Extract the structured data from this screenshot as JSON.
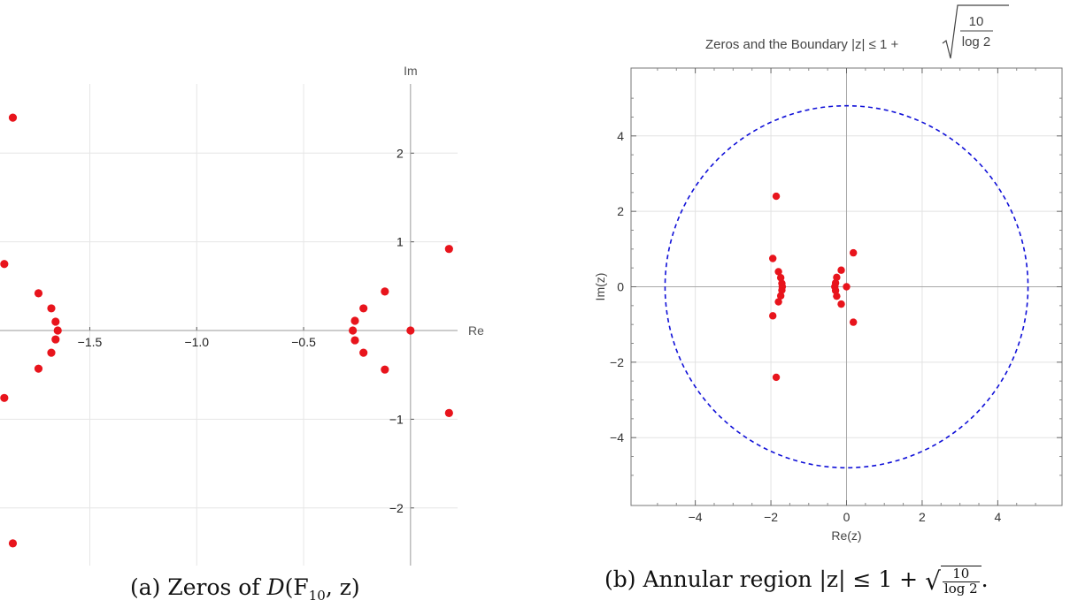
{
  "chart_data": [
    {
      "type": "scatter",
      "title": "",
      "xlabel": "Re",
      "ylabel": "Im",
      "xlim": [
        -1.92,
        0.22
      ],
      "ylim": [
        -2.65,
        2.78
      ],
      "x_ticks": [
        -1.5,
        -1.0,
        -0.5
      ],
      "x_tick_labels": [
        "−1.5",
        "−1.0",
        "−0.5"
      ],
      "y_ticks": [
        -2,
        -1,
        1,
        2
      ],
      "y_tick_labels": [
        "−2",
        "−1",
        "1",
        "2"
      ],
      "grid": true,
      "marker_color": "#e8141c",
      "points": [
        {
          "x": -1.86,
          "y": 2.4
        },
        {
          "x": -1.86,
          "y": -2.4
        },
        {
          "x": -1.9,
          "y": 0.75
        },
        {
          "x": -1.9,
          "y": -0.76
        },
        {
          "x": -1.74,
          "y": 0.42
        },
        {
          "x": -1.74,
          "y": -0.43
        },
        {
          "x": -1.68,
          "y": 0.25
        },
        {
          "x": -1.68,
          "y": -0.25
        },
        {
          "x": -1.66,
          "y": 0.1
        },
        {
          "x": -1.66,
          "y": -0.1
        },
        {
          "x": -1.65,
          "y": 0.0
        },
        {
          "x": -0.26,
          "y": 0.11
        },
        {
          "x": -0.26,
          "y": -0.11
        },
        {
          "x": -0.27,
          "y": 0.0
        },
        {
          "x": -0.22,
          "y": 0.25
        },
        {
          "x": -0.22,
          "y": -0.25
        },
        {
          "x": -0.12,
          "y": 0.44
        },
        {
          "x": -0.12,
          "y": -0.44
        },
        {
          "x": 0.0,
          "y": 0.0
        },
        {
          "x": 0.18,
          "y": 0.92
        },
        {
          "x": 0.18,
          "y": -0.93
        }
      ]
    },
    {
      "type": "scatter",
      "title": "Zeros and the Boundary |z| ≤ 1 + ",
      "title_sqrt_num": "10",
      "title_sqrt_den": "log 2",
      "xlabel": "Re(z)",
      "ylabel": "Im(z)",
      "xlim": [
        -5.7,
        5.7
      ],
      "ylim": [
        -5.8,
        5.8
      ],
      "x_ticks": [
        -4,
        -2,
        0,
        2,
        4
      ],
      "x_tick_labels": [
        "−4",
        "−2",
        "0",
        "2",
        "4"
      ],
      "y_ticks": [
        -4,
        -2,
        0,
        2,
        4
      ],
      "y_tick_labels": [
        "−4",
        "−2",
        "0",
        "2",
        "4"
      ],
      "grid": true,
      "marker_color": "#e8141c",
      "boundary_circle": {
        "radius": 4.8,
        "color": "#1010d8",
        "style": "dashed"
      },
      "points": [
        {
          "x": -1.86,
          "y": 2.4
        },
        {
          "x": -1.86,
          "y": -2.4
        },
        {
          "x": -1.95,
          "y": 0.75
        },
        {
          "x": -1.95,
          "y": -0.77
        },
        {
          "x": -1.8,
          "y": 0.4
        },
        {
          "x": -1.8,
          "y": -0.4
        },
        {
          "x": -1.74,
          "y": 0.24
        },
        {
          "x": -1.74,
          "y": -0.24
        },
        {
          "x": -1.71,
          "y": 0.09
        },
        {
          "x": -1.71,
          "y": -0.09
        },
        {
          "x": -1.7,
          "y": 0.0
        },
        {
          "x": -0.29,
          "y": 0.1
        },
        {
          "x": -0.29,
          "y": -0.1
        },
        {
          "x": -0.31,
          "y": 0.0
        },
        {
          "x": -0.26,
          "y": 0.25
        },
        {
          "x": -0.26,
          "y": -0.25
        },
        {
          "x": -0.14,
          "y": 0.44
        },
        {
          "x": -0.14,
          "y": -0.46
        },
        {
          "x": 0.0,
          "y": 0.0
        },
        {
          "x": 0.18,
          "y": 0.9
        },
        {
          "x": 0.18,
          "y": -0.94
        }
      ]
    }
  ],
  "captions": {
    "a": {
      "prefix": "(a) Zeros of ",
      "func": "D",
      "args": "(F",
      "sub": "10",
      "rest": ", z)"
    },
    "b": {
      "prefix": "(b) Annular region ",
      "expr": "|z| ≤ 1 + ",
      "num": "10",
      "den": "log 2",
      "suffix": "."
    }
  }
}
